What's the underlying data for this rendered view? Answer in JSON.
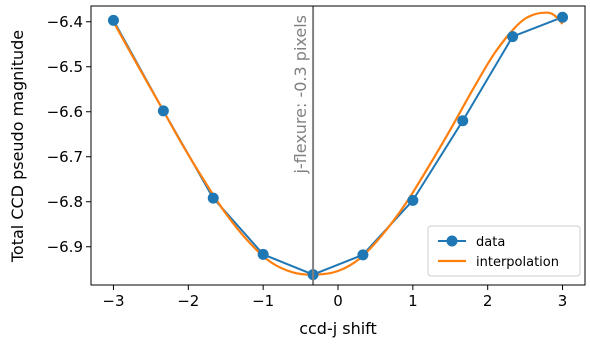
{
  "chart_data": {
    "type": "line",
    "title": "",
    "xlabel": "ccd-j shift",
    "ylabel": "Total CCD pseudo magnitude",
    "xlim": [
      -3.3,
      3.3
    ],
    "ylim": [
      -6.985,
      -6.365
    ],
    "xticks": [
      -3,
      -2,
      -1,
      0,
      1,
      2,
      3
    ],
    "xtick_labels": [
      "−3",
      "−2",
      "−1",
      "0",
      "1",
      "2",
      "3"
    ],
    "yticks": [
      -6.4,
      -6.5,
      -6.6,
      -6.7,
      -6.8,
      -6.9
    ],
    "ytick_labels": [
      "−6.4",
      "−6.5",
      "−6.6",
      "−6.7",
      "−6.8",
      "−6.9"
    ],
    "grid": false,
    "legend_position": "lower-right",
    "series": [
      {
        "name": "data",
        "marker": "circle",
        "color": "#1f77b4",
        "x": [
          -3.0,
          -2.333,
          -1.667,
          -1.0,
          -0.333,
          0.333,
          1.0,
          1.667,
          2.333,
          3.0
        ],
        "y": [
          -6.397,
          -6.598,
          -6.792,
          -6.917,
          -6.962,
          -6.918,
          -6.797,
          -6.62,
          -6.433,
          -6.39
        ]
      },
      {
        "name": "interpolation",
        "color": "#ff7f0e",
        "x": [
          -3.0,
          -2.7,
          -2.4,
          -2.1,
          -1.8,
          -1.5,
          -1.2,
          -0.9,
          -0.6,
          -0.3,
          0.0,
          0.3,
          0.6,
          0.9,
          1.2,
          1.5,
          1.8,
          2.1,
          2.4,
          2.6,
          2.8,
          2.9,
          3.0
        ],
        "y": [
          -6.4,
          -6.49,
          -6.578,
          -6.667,
          -6.75,
          -6.826,
          -6.888,
          -6.934,
          -6.957,
          -6.962,
          -6.954,
          -6.925,
          -6.872,
          -6.805,
          -6.725,
          -6.64,
          -6.551,
          -6.468,
          -6.407,
          -6.385,
          -6.38,
          -6.387,
          -6.405
        ]
      }
    ],
    "annotations": [
      {
        "text": "j-flexure: -0.3 pixels",
        "x": -0.333,
        "type": "vline",
        "color": "#808080"
      }
    ]
  }
}
